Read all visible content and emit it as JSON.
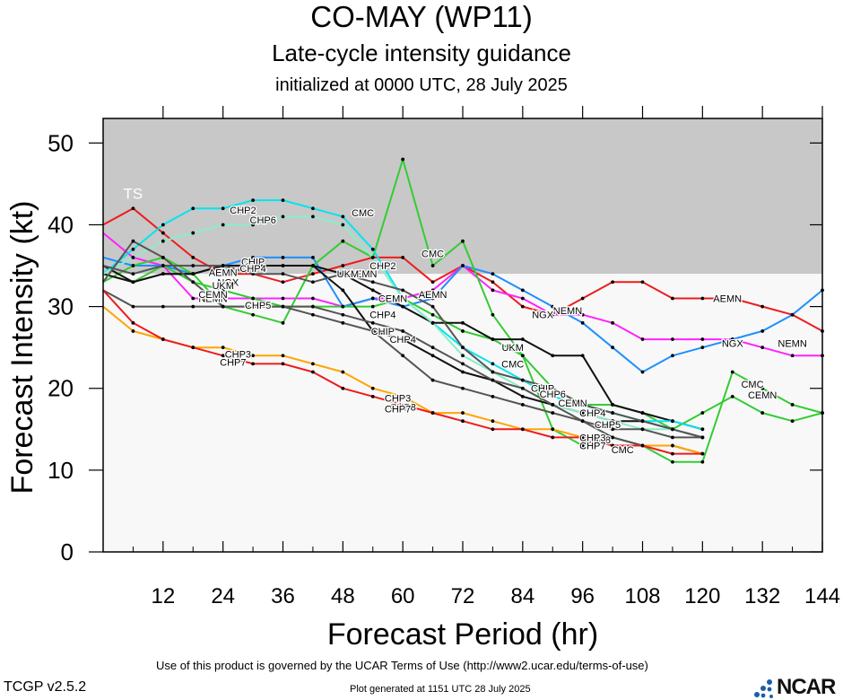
{
  "header": {
    "title": "CO-MAY (WP11)",
    "subtitle": "Late-cycle intensity guidance",
    "init": "initialized at 0000 UTC, 28 July 2025"
  },
  "footer": {
    "terms": "Use of this product is governed by the UCAR Terms of Use (http://www2.ucar.edu/terms-of-use)",
    "version": "TCGP v2.5.2",
    "generated": "Plot generated at 1151 UTC   28 July 2025",
    "logo": "NCAR"
  },
  "chart_data": {
    "type": "line",
    "xlabel": "Forecast Period (hr)",
    "ylabel": "Forecast Intensity (kt)",
    "xlim": [
      0,
      144
    ],
    "ylim": [
      0,
      53
    ],
    "xticks": [
      12,
      24,
      36,
      48,
      60,
      72,
      84,
      96,
      108,
      120,
      132,
      144
    ],
    "yticks": [
      0,
      10,
      20,
      30,
      40,
      50
    ],
    "bands": [
      {
        "label": "TS",
        "from": 34,
        "to": 53,
        "color": "#c8c8c8"
      },
      {
        "label": "",
        "from": 0,
        "to": 34,
        "color": "#f8f8f8"
      }
    ],
    "series": [
      {
        "name": "AEMN",
        "color": "#ee1c1c",
        "label_at": [
          [
            24,
            34.2
          ],
          [
            52,
            34
          ],
          [
            66,
            31.5
          ],
          [
            125,
            31
          ]
        ],
        "x": [
          0,
          6,
          12,
          18,
          24,
          30,
          36,
          42,
          48,
          54,
          60,
          66,
          72,
          78,
          84,
          90,
          96,
          102,
          108,
          114,
          120,
          126,
          132,
          138,
          144
        ],
        "y": [
          40,
          42,
          39,
          36,
          34,
          34,
          33,
          34,
          35,
          36,
          36,
          33,
          35,
          33,
          30,
          29,
          31,
          33,
          33,
          31,
          31,
          31,
          30,
          29,
          27
        ]
      },
      {
        "name": "NEMN",
        "color": "#ff22ff",
        "label_at": [
          [
            22,
            31
          ],
          [
            93,
            29.5
          ],
          [
            138,
            25.5
          ]
        ],
        "x": [
          0,
          6,
          12,
          18,
          24,
          30,
          36,
          42,
          48,
          54,
          60,
          66,
          72,
          78,
          84,
          90,
          96,
          102,
          108,
          114,
          120,
          126,
          132,
          138,
          144
        ],
        "y": [
          39,
          36,
          35,
          31,
          31,
          31,
          31,
          31,
          30,
          31,
          31,
          32,
          35,
          32,
          31,
          29,
          29,
          28,
          26,
          26,
          26,
          26,
          25,
          24,
          24
        ]
      },
      {
        "name": "NGX",
        "color": "#1e8fff",
        "label_at": [
          [
            25,
            33
          ],
          [
            88,
            29
          ],
          [
            126,
            25.5
          ]
        ],
        "x": [
          0,
          6,
          12,
          18,
          24,
          30,
          36,
          42,
          48,
          54,
          60,
          66,
          72,
          78,
          84,
          90,
          96,
          102,
          108,
          114,
          120,
          126,
          132,
          138,
          144
        ],
        "y": [
          36,
          35,
          35,
          34,
          35,
          36,
          36,
          36,
          30,
          31,
          30,
          31,
          35,
          34,
          32,
          30,
          28,
          25,
          22,
          24,
          25,
          26,
          27,
          29,
          32
        ]
      },
      {
        "name": "CMC",
        "color": "#33cc33",
        "label_at": [
          [
            52,
            41.5
          ],
          [
            66,
            36.5
          ],
          [
            82,
            23
          ],
          [
            104,
            12.5
          ],
          [
            130,
            20.5
          ]
        ],
        "x": [
          0,
          6,
          12,
          18,
          24,
          30,
          36,
          42,
          48,
          54,
          60,
          66,
          72,
          78,
          84,
          90,
          96,
          102,
          108,
          114,
          120,
          126,
          132,
          138,
          144
        ],
        "y": [
          33,
          35,
          36,
          34,
          30,
          29,
          28,
          35,
          38,
          36,
          48,
          35,
          38,
          29,
          24,
          15,
          13,
          14,
          13,
          11,
          11,
          22,
          20,
          18,
          17
        ]
      },
      {
        "name": "CEMN",
        "color": "#33cc33",
        "label_at": [
          [
            22,
            31.5
          ],
          [
            58,
            31
          ],
          [
            94,
            18.2
          ],
          [
            132,
            19.2
          ]
        ],
        "x": [
          0,
          6,
          12,
          18,
          24,
          30,
          36,
          42,
          48,
          54,
          60,
          66,
          72,
          78,
          84,
          90,
          96,
          102,
          108,
          114,
          120,
          126,
          132,
          138,
          144
        ],
        "y": [
          34,
          33,
          35,
          33,
          32,
          31,
          30,
          30,
          30,
          30,
          31,
          29,
          27,
          26,
          24,
          20,
          18,
          18,
          17,
          15,
          17,
          19,
          17,
          16,
          17
        ]
      },
      {
        "name": "UKM",
        "color": "#111111",
        "label_at": [
          [
            24,
            32.6
          ],
          [
            49,
            34
          ],
          [
            82,
            25
          ]
        ],
        "x": [
          0,
          6,
          12,
          18,
          24,
          30,
          36,
          42,
          48,
          54,
          60,
          66,
          72,
          78,
          84,
          90,
          96,
          102,
          108,
          114,
          120
        ],
        "y": [
          34,
          33,
          34,
          34,
          35,
          35,
          35,
          35,
          34,
          32,
          30,
          28,
          28,
          26,
          26,
          24,
          24,
          18,
          17,
          16,
          15
        ]
      },
      {
        "name": "CHIP",
        "color": "#111111",
        "label_at": [
          [
            30,
            35.5
          ],
          [
            56,
            27
          ],
          [
            88,
            20
          ]
        ],
        "x": [
          0,
          6,
          12,
          18,
          24,
          30,
          36,
          42,
          48,
          54,
          60,
          66,
          72,
          78,
          84,
          90,
          96,
          102,
          108,
          114,
          120
        ],
        "y": [
          35,
          33,
          34,
          34,
          35,
          35,
          35,
          35,
          32,
          27,
          26,
          24,
          22,
          21,
          19,
          18,
          17,
          16,
          16,
          15,
          14
        ]
      },
      {
        "name": "CHP2",
        "color": "#00e5ee",
        "label_at": [
          [
            28,
            41.8
          ],
          [
            56,
            35
          ]
        ],
        "x": [
          0,
          6,
          12,
          18,
          24,
          30,
          36,
          42,
          48,
          54,
          60,
          66,
          72,
          78,
          84,
          90,
          96,
          102,
          108,
          114,
          120
        ],
        "y": [
          34,
          37,
          40,
          42,
          42,
          43,
          43,
          42,
          41,
          37,
          31,
          28,
          25,
          23,
          21,
          19,
          18,
          17,
          16,
          16,
          15
        ]
      },
      {
        "name": "CHP6",
        "color": "#88eecc",
        "label_at": [
          [
            32,
            40.6
          ],
          [
            90,
            19.3
          ]
        ],
        "x": [
          0,
          6,
          12,
          18,
          24,
          30,
          36,
          42,
          48,
          54,
          60,
          66,
          72,
          78,
          84,
          90,
          96,
          102,
          108,
          114,
          120
        ],
        "y": [
          34,
          36,
          38,
          39,
          40,
          40,
          41,
          41,
          40,
          36,
          31,
          28,
          24,
          22,
          20,
          18,
          17,
          16,
          15,
          15,
          14
        ]
      },
      {
        "name": "CHP4",
        "color": "#555555",
        "label_at": [
          [
            30,
            34.7
          ],
          [
            56,
            29
          ],
          [
            60,
            26
          ],
          [
            98,
            17
          ]
        ],
        "x": [
          0,
          6,
          12,
          18,
          24,
          30,
          36,
          42,
          48,
          54,
          60,
          66,
          72,
          78,
          84,
          90,
          96,
          102,
          108,
          114,
          120
        ],
        "y": [
          35,
          34,
          35,
          35,
          35,
          34,
          34,
          33,
          34,
          33,
          32,
          30,
          25,
          22,
          21,
          20,
          18,
          17,
          16,
          15,
          14
        ]
      },
      {
        "name": "CHP5",
        "color": "#555555",
        "label_at": [
          [
            31,
            30.2
          ],
          [
            101,
            15.6
          ]
        ],
        "x": [
          0,
          6,
          12,
          18,
          24,
          30,
          36,
          42,
          48,
          54,
          60,
          66,
          72,
          78,
          84,
          90,
          96,
          102,
          108,
          114,
          120
        ],
        "y": [
          33,
          38,
          36,
          33,
          30,
          30,
          30,
          29,
          28,
          27,
          24,
          21,
          20,
          19,
          18,
          17,
          16,
          15,
          15,
          14,
          14
        ]
      },
      {
        "name": "CHP8",
        "color": "#555555",
        "label_at": [
          [
            60,
            17.7
          ],
          [
            99,
            13.7
          ]
        ],
        "x": [
          0,
          6,
          12,
          18,
          24,
          30,
          36,
          42,
          48,
          54,
          60,
          66,
          72,
          78,
          84,
          90,
          96,
          102,
          108,
          114,
          120
        ],
        "y": [
          32,
          30,
          30,
          30,
          30,
          30,
          30,
          30,
          29,
          28,
          27,
          25,
          23,
          21,
          20,
          18,
          16,
          14,
          13,
          13,
          12
        ]
      },
      {
        "name": "CHP3",
        "color": "#ffa500",
        "label_at": [
          [
            27,
            24.2
          ],
          [
            59,
            18.8
          ],
          [
            98,
            14
          ]
        ],
        "x": [
          0,
          6,
          12,
          18,
          24,
          30,
          36,
          42,
          48,
          54,
          60,
          66,
          72,
          78,
          84,
          90,
          96,
          102,
          108,
          114,
          120
        ],
        "y": [
          30,
          27,
          26,
          25,
          25,
          24,
          24,
          23,
          22,
          20,
          19,
          17,
          17,
          16,
          15,
          15,
          14,
          13,
          13,
          13,
          12
        ]
      },
      {
        "name": "CHP7",
        "color": "#ee1c1c",
        "label_at": [
          [
            26,
            23.2
          ],
          [
            59,
            17.5
          ],
          [
            98,
            13
          ]
        ],
        "x": [
          0,
          6,
          12,
          18,
          24,
          30,
          36,
          42,
          48,
          54,
          60,
          66,
          72,
          78,
          84,
          90,
          96,
          102,
          108,
          114,
          120
        ],
        "y": [
          32,
          28,
          26,
          25,
          24,
          23,
          23,
          22,
          20,
          19,
          18,
          17,
          16,
          15,
          15,
          14,
          14,
          13,
          13,
          12,
          12
        ]
      }
    ]
  }
}
